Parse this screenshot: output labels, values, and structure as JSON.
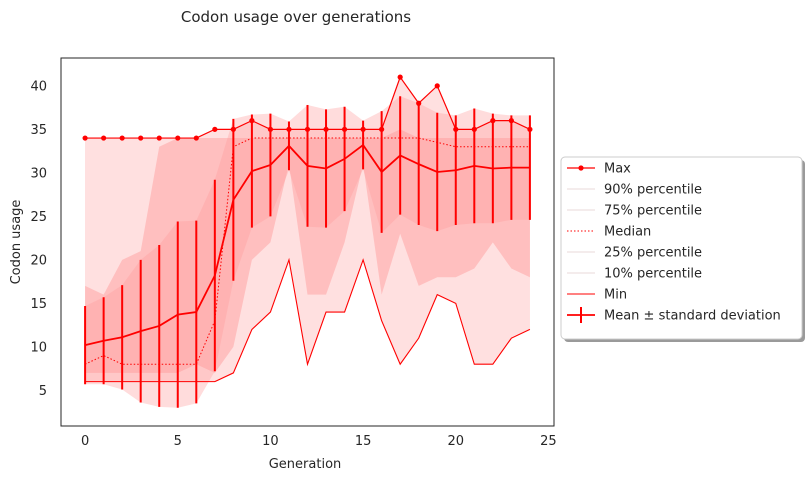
{
  "chart_data": {
    "type": "line",
    "title": "Codon usage over generations",
    "xlabel": "Generation",
    "ylabel": "Codon usage",
    "xlim": [
      -1.3,
      25.3
    ],
    "ylim": [
      0.9,
      43.2
    ],
    "xticks": [
      0,
      5,
      10,
      15,
      20,
      25
    ],
    "yticks": [
      5,
      10,
      15,
      20,
      25,
      30,
      35,
      40
    ],
    "grid": false,
    "legend_position": "center-right-outside",
    "colors": {
      "main": "#ff0000",
      "band_light": "#ffe0e0",
      "band_mid": "#ffbfbf",
      "band_dark": "#ff9a9a"
    },
    "x": [
      0,
      1,
      2,
      3,
      4,
      5,
      6,
      7,
      8,
      9,
      10,
      11,
      12,
      13,
      14,
      15,
      16,
      17,
      18,
      19,
      20,
      21,
      22,
      23,
      24
    ],
    "series": [
      {
        "name": "Max",
        "values": [
          34,
          34,
          34,
          34,
          34,
          34,
          34,
          35,
          35,
          36,
          35,
          35,
          35,
          35,
          35,
          35,
          35,
          41,
          38,
          40,
          35,
          35,
          36,
          36,
          35
        ]
      },
      {
        "name": "90% percentile",
        "values": [
          34,
          34,
          34,
          34,
          34,
          34,
          34,
          34,
          34,
          34,
          34,
          34,
          34,
          34,
          34,
          34,
          34,
          35,
          35,
          34,
          34,
          34,
          34,
          34,
          34
        ]
      },
      {
        "name": "75% percentile",
        "values": [
          17,
          16,
          20,
          21,
          33,
          34,
          34,
          34,
          34,
          34,
          34,
          34,
          34,
          34,
          34,
          34,
          34,
          35,
          34,
          34,
          34,
          34,
          34,
          34,
          34
        ]
      },
      {
        "name": "Median",
        "values": [
          8,
          9,
          8,
          8,
          8,
          8,
          8,
          13,
          33,
          34,
          34,
          34,
          34,
          34,
          34,
          34,
          34,
          34,
          34,
          33.5,
          33,
          33,
          33,
          33,
          33
        ]
      },
      {
        "name": "25% percentile",
        "values": [
          7,
          7,
          7,
          7,
          7,
          7,
          8,
          7,
          10,
          20,
          22,
          31,
          16,
          16,
          22,
          31,
          16,
          23,
          17,
          18,
          18,
          19,
          22,
          19,
          18
        ]
      },
      {
        "name": "10% percentile",
        "values": [
          6,
          6,
          6,
          6,
          6,
          6,
          6,
          6,
          8,
          12,
          14,
          20,
          8,
          14,
          14,
          20,
          13,
          8,
          11,
          16,
          15,
          8,
          8,
          11,
          12
        ]
      },
      {
        "name": "Min",
        "values": [
          6,
          6,
          6,
          6,
          6,
          6,
          6,
          6,
          7,
          12,
          14,
          20,
          8,
          14,
          14,
          20,
          13,
          8,
          11,
          16,
          15,
          8,
          8,
          11,
          12
        ]
      },
      {
        "name": "Mean ± standard deviation",
        "values": [
          10.2,
          10.7,
          11.1,
          11.8,
          12.4,
          13.7,
          14.0,
          18.2,
          26.9,
          30.2,
          30.9,
          33.1,
          30.8,
          30.5,
          31.6,
          33.2,
          30.1,
          32.0,
          31.0,
          30.1,
          30.3,
          30.8,
          30.5,
          30.6,
          30.6
        ],
        "std": [
          4.5,
          5.0,
          6.0,
          8.2,
          9.3,
          10.7,
          10.5,
          11.0,
          9.3,
          6.5,
          5.9,
          2.8,
          7.0,
          6.8,
          6.0,
          2.8,
          7.0,
          6.8,
          7.0,
          6.8,
          6.3,
          6.6,
          6.3,
          6.0,
          6.0
        ]
      }
    ],
    "legend": [
      {
        "label": "Max",
        "style": "line-marker"
      },
      {
        "label": "90% percentile",
        "style": "faint"
      },
      {
        "label": "75% percentile",
        "style": "faint"
      },
      {
        "label": "Median",
        "style": "dotted"
      },
      {
        "label": "25% percentile",
        "style": "faint"
      },
      {
        "label": "10% percentile",
        "style": "faint"
      },
      {
        "label": "Min",
        "style": "line"
      },
      {
        "label": "Mean ± standard deviation",
        "style": "errorbar"
      }
    ]
  }
}
